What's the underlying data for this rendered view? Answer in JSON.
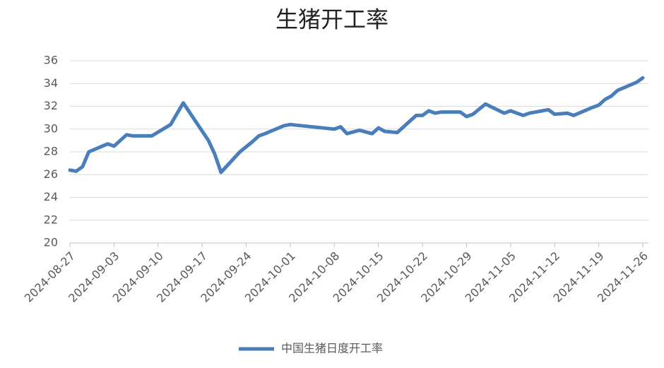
{
  "chart_data": {
    "type": "line",
    "title": "生猪开工率",
    "x": [
      "2024-08-27",
      "2024-08-28",
      "2024-08-29",
      "2024-08-30",
      "2024-09-02",
      "2024-09-03",
      "2024-09-05",
      "2024-09-06",
      "2024-09-09",
      "2024-09-12",
      "2024-09-14",
      "2024-09-18",
      "2024-09-19",
      "2024-09-20",
      "2024-09-23",
      "2024-09-25",
      "2024-09-26",
      "2024-09-27",
      "2024-09-30",
      "2024-10-01",
      "2024-10-08",
      "2024-10-09",
      "2024-10-10",
      "2024-10-12",
      "2024-10-14",
      "2024-10-15",
      "2024-10-16",
      "2024-10-18",
      "2024-10-21",
      "2024-10-22",
      "2024-10-23",
      "2024-10-24",
      "2024-10-25",
      "2024-10-28",
      "2024-10-29",
      "2024-10-30",
      "2024-11-01",
      "2024-11-04",
      "2024-11-05",
      "2024-11-06",
      "2024-11-07",
      "2024-11-08",
      "2024-11-11",
      "2024-11-12",
      "2024-11-14",
      "2024-11-15",
      "2024-11-18",
      "2024-11-19",
      "2024-11-20",
      "2024-11-21",
      "2024-11-22",
      "2024-11-25",
      "2024-11-26"
    ],
    "series": [
      {
        "name": "中国生猪日度开工率",
        "color": "#4a7ebb",
        "values": [
          26.4,
          26.3,
          26.7,
          28.0,
          28.7,
          28.5,
          29.5,
          29.4,
          29.4,
          30.4,
          32.3,
          29.0,
          27.8,
          26.2,
          28.0,
          28.9,
          29.4,
          29.6,
          30.3,
          30.4,
          30.0,
          30.2,
          29.6,
          29.9,
          29.6,
          30.1,
          29.8,
          29.7,
          31.2,
          31.2,
          31.6,
          31.4,
          31.5,
          31.5,
          31.1,
          31.3,
          32.2,
          31.4,
          31.6,
          31.4,
          31.2,
          31.4,
          31.7,
          31.3,
          31.4,
          31.2,
          31.9,
          32.1,
          32.6,
          32.9,
          33.4,
          34.1,
          34.5
        ]
      }
    ],
    "xlim": [
      "2024-08-27",
      "2024-11-26"
    ],
    "xticks": [
      "2024-08-27",
      "2024-09-03",
      "2024-09-10",
      "2024-09-17",
      "2024-09-24",
      "2024-10-01",
      "2024-10-08",
      "2024-10-15",
      "2024-10-22",
      "2024-10-29",
      "2024-11-05",
      "2024-11-12",
      "2024-11-19",
      "2024-11-26"
    ],
    "ylim": [
      20,
      36
    ],
    "yticks": [
      20,
      22,
      24,
      26,
      28,
      30,
      32,
      34,
      36
    ],
    "grid": true,
    "legend": "bottom"
  }
}
